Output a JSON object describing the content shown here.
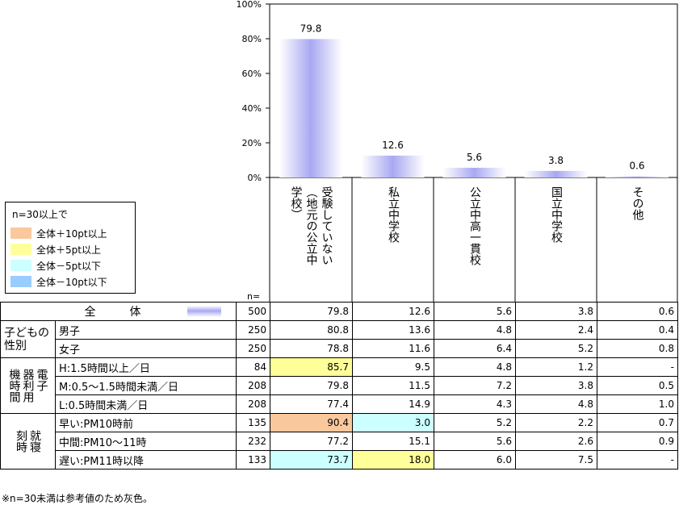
{
  "chart_data": {
    "type": "bar",
    "categories": [
      "受験していない（地元の公立中学校）",
      "私立中学校",
      "公立中高一貫校",
      "国立中学校",
      "その他"
    ],
    "category_lines": [
      [
        "受験していない",
        "（地元の公立中",
        "学校）"
      ],
      [
        "私立中学校"
      ],
      [
        "公立中高一貫校"
      ],
      [
        "国立中学校"
      ],
      [
        "その他"
      ]
    ],
    "values": [
      79.8,
      12.6,
      5.6,
      3.8,
      0.6
    ],
    "value_labels": [
      "79.8",
      "12.6",
      "5.6",
      "3.8",
      "0.6"
    ],
    "ylim": [
      0,
      100
    ],
    "yticks": [
      "0%",
      "20%",
      "40%",
      "60%",
      "80%",
      "100%"
    ],
    "bar_color": "#a8a8f2",
    "grid": false
  },
  "legend": {
    "title": "n=30以上で",
    "items": [
      {
        "label": "全体＋10pt以上",
        "color": "#f9c89d"
      },
      {
        "label": "全体＋5pt以上",
        "color": "#ffff99"
      },
      {
        "label": "全体－5pt以下",
        "color": "#ccffff"
      },
      {
        "label": "全体－10pt以下",
        "color": "#99ccff"
      }
    ]
  },
  "table": {
    "n_label": "n=",
    "total": {
      "label": "全　体",
      "n": "500",
      "values": [
        "79.8",
        "12.6",
        "5.6",
        "3.8",
        "0.6"
      ]
    },
    "groups": [
      {
        "name_lines": [
          "子どもの",
          "性別"
        ],
        "rows": [
          {
            "label": "男子",
            "n": "250",
            "values": [
              "80.8",
              "13.6",
              "4.8",
              "2.4",
              "0.4"
            ],
            "hl": [
              "",
              "",
              "",
              "",
              ""
            ]
          },
          {
            "label": "女子",
            "n": "250",
            "values": [
              "78.8",
              "11.6",
              "6.4",
              "5.2",
              "0.8"
            ],
            "hl": [
              "",
              "",
              "",
              "",
              ""
            ]
          }
        ]
      },
      {
        "name_vertical": [
          "電子",
          "器利用",
          "機時間"
        ],
        "rows": [
          {
            "label": "H:1.5時間以上／日",
            "n": "84",
            "values": [
              "85.7",
              "9.5",
              "4.8",
              "1.2",
              "-"
            ],
            "hl": [
              "#ffff99",
              "",
              "",
              "",
              ""
            ]
          },
          {
            "label": "M:0.5〜1.5時間未満／日",
            "n": "208",
            "values": [
              "79.8",
              "11.5",
              "7.2",
              "3.8",
              "0.5"
            ],
            "hl": [
              "",
              "",
              "",
              "",
              ""
            ]
          },
          {
            "label": "L:0.5時間未満／日",
            "n": "208",
            "values": [
              "77.4",
              "14.9",
              "4.3",
              "4.8",
              "1.0"
            ],
            "hl": [
              "",
              "",
              "",
              "",
              ""
            ]
          }
        ]
      },
      {
        "name_vertical": [
          "就寝",
          "刻時"
        ],
        "rows": [
          {
            "label": "早い:PM10時前",
            "n": "135",
            "values": [
              "90.4",
              "3.0",
              "5.2",
              "2.2",
              "0.7"
            ],
            "hl": [
              "#f9c89d",
              "#ccffff",
              "",
              "",
              ""
            ]
          },
          {
            "label": "中間:PM10〜11時",
            "n": "232",
            "values": [
              "77.2",
              "15.1",
              "5.6",
              "2.6",
              "0.9"
            ],
            "hl": [
              "",
              "",
              "",
              "",
              ""
            ]
          },
          {
            "label": "遅い:PM11時以降",
            "n": "133",
            "values": [
              "73.7",
              "18.0",
              "6.0",
              "7.5",
              "-"
            ],
            "hl": [
              "#ccffff",
              "#ffff99",
              "",
              "",
              ""
            ]
          }
        ]
      }
    ]
  },
  "note": "※n=30未満は参考値のため灰色。"
}
